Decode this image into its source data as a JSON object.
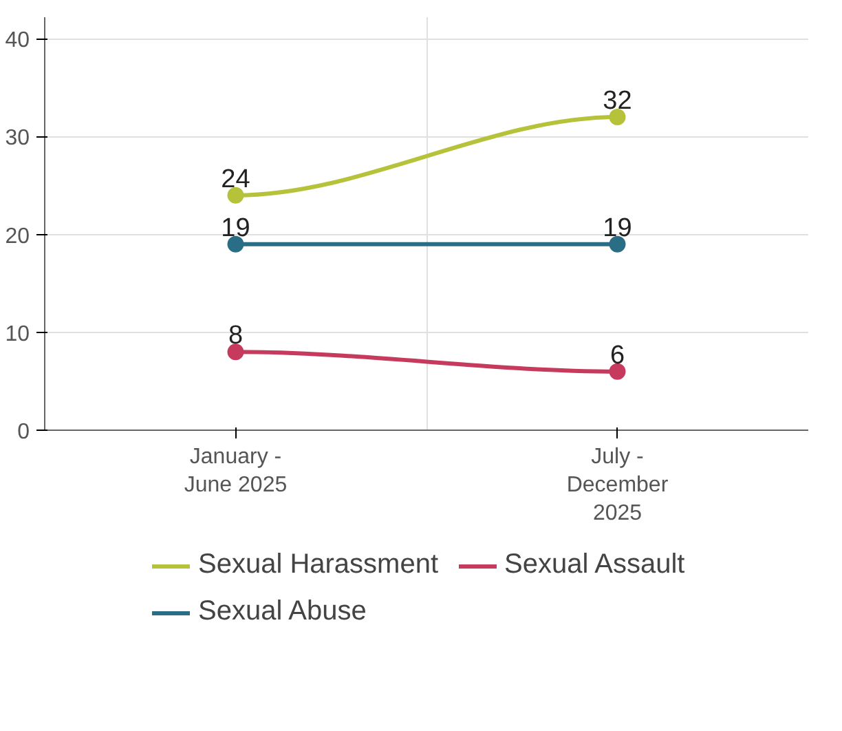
{
  "chart_data": {
    "type": "line",
    "categories": [
      "January - June 2025",
      "July - December 2025"
    ],
    "series": [
      {
        "name": "Sexual Harassment",
        "color": "#b5c23a",
        "values": [
          24,
          32
        ]
      },
      {
        "name": "Sexual Assault",
        "color": "#c63a5e",
        "values": [
          8,
          6
        ]
      },
      {
        "name": "Sexual Abuse",
        "color": "#2a6e86",
        "values": [
          19,
          19
        ]
      }
    ],
    "ylim": [
      0,
      42.2
    ],
    "yticks": [
      0,
      10,
      20,
      30,
      40
    ],
    "grid": true,
    "legend": "bottom",
    "marker": "circle",
    "line_style": "solid",
    "data_labels": true
  }
}
